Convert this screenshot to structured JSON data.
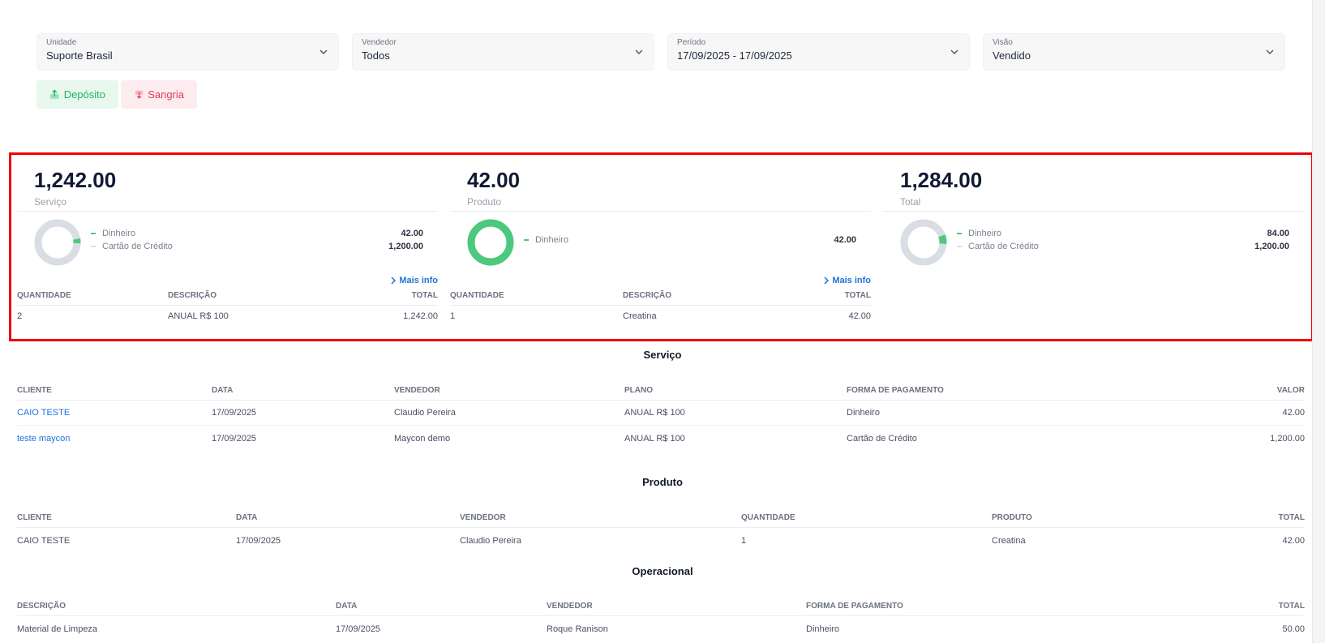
{
  "filters": [
    {
      "label": "Unidade",
      "value": "Suporte Brasil"
    },
    {
      "label": "Vendedor",
      "value": "Todos"
    },
    {
      "label": "Período",
      "value": "17/09/2025 - 17/09/2025"
    },
    {
      "label": "Visão",
      "value": "Vendido"
    }
  ],
  "actions": {
    "deposit_label": "Depósito",
    "withdrawal_label": "Sangria"
  },
  "colors": {
    "green": "#4cc97c",
    "gray": "#d9dde4",
    "red": "#ee0000",
    "link": "#1e73d8"
  },
  "cards": [
    {
      "total": "1,242.00",
      "label": "Serviço",
      "legend": [
        {
          "name": "Dinheiro",
          "amount": "42.00"
        },
        {
          "name": "Cartão de Crédito",
          "amount": "1,200.00"
        }
      ],
      "share_green": 0.0338,
      "more": "Mais info",
      "columns": [
        "QUANTIDADE",
        "DESCRIÇÃO",
        "TOTAL"
      ],
      "rows": [
        [
          "2",
          "ANUAL R$ 100",
          "1,242.00"
        ]
      ]
    },
    {
      "total": "42.00",
      "label": "Produto",
      "legend": [
        {
          "name": "Dinheiro",
          "amount": "42.00"
        }
      ],
      "share_green": 1,
      "more": "Mais info",
      "columns": [
        "QUANTIDADE",
        "DESCRIÇÃO",
        "TOTAL"
      ],
      "rows": [
        [
          "1",
          "Creatina",
          "42.00"
        ]
      ]
    },
    {
      "total": "1,284.00",
      "label": "Total",
      "legend": [
        {
          "name": "Dinheiro",
          "amount": "84.00"
        },
        {
          "name": "Cartão de Crédito",
          "amount": "1,200.00"
        }
      ],
      "share_green": 0.0654
    }
  ],
  "servico": {
    "title": "Serviço",
    "columns": [
      "CLIENTE",
      "DATA",
      "VENDEDOR",
      "PLANO",
      "FORMA DE PAGAMENTO",
      "VALOR"
    ],
    "rows": [
      [
        "CAIO TESTE",
        "17/09/2025",
        "Claudio Pereira",
        "ANUAL R$ 100",
        "Dinheiro",
        "42.00"
      ],
      [
        "teste maycon",
        "17/09/2025",
        "Maycon demo",
        "ANUAL R$ 100",
        "Cartão de Crédito",
        "1,200.00"
      ]
    ]
  },
  "produto": {
    "title": "Produto",
    "columns": [
      "CLIENTE",
      "DATA",
      "VENDEDOR",
      "QUANTIDADE",
      "PRODUTO",
      "TOTAL"
    ],
    "rows": [
      [
        "CAIO TESTE",
        "17/09/2025",
        "Claudio Pereira",
        "1",
        "Creatina",
        "42.00"
      ]
    ]
  },
  "operacional": {
    "title": "Operacional",
    "columns": [
      "DESCRIÇÃO",
      "DATA",
      "VENDEDOR",
      "FORMA DE PAGAMENTO",
      "TOTAL"
    ],
    "rows": [
      [
        "Material de Limpeza",
        "17/09/2025",
        "Roque Ranison",
        "Dinheiro",
        "50.00"
      ]
    ]
  }
}
